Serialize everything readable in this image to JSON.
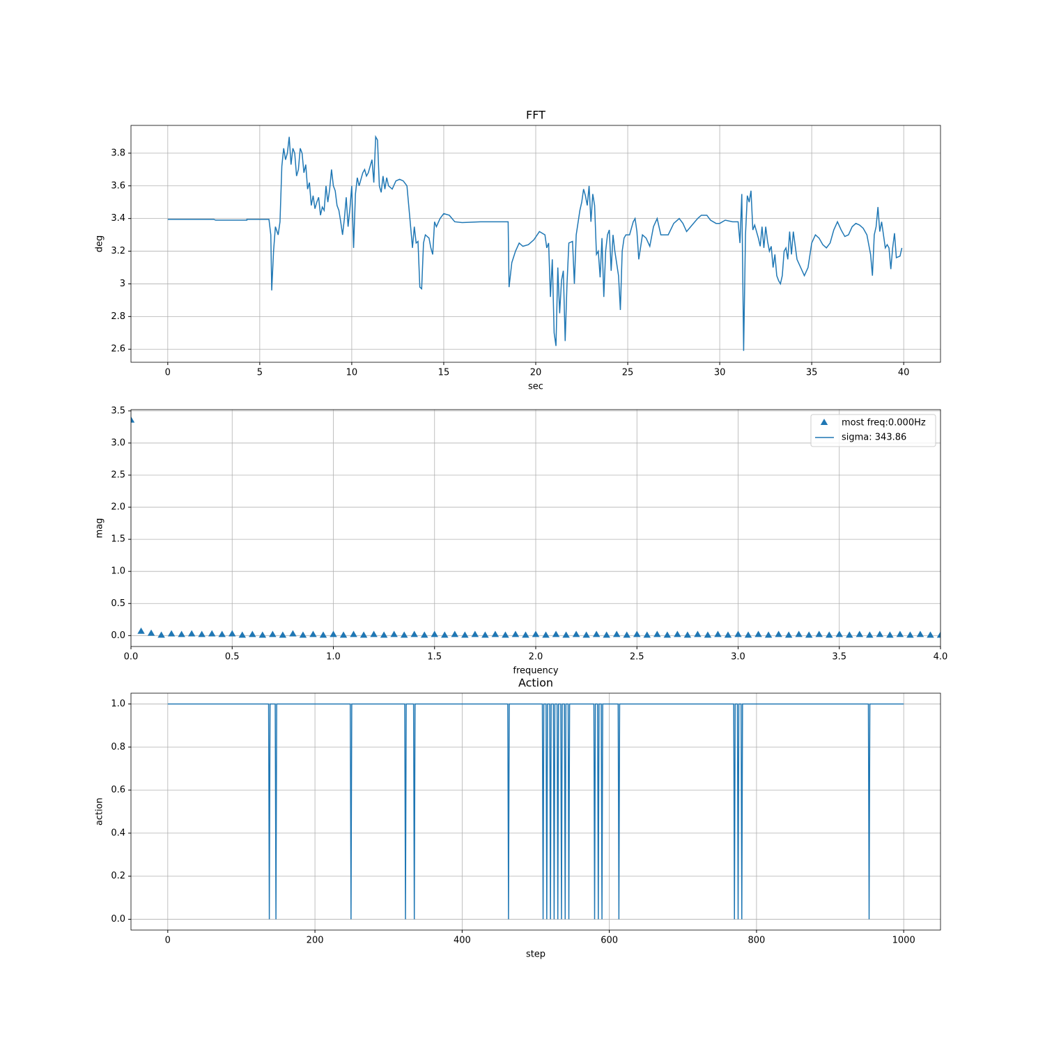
{
  "chart_data": [
    {
      "type": "line",
      "title": "FFT",
      "xlabel": "sec",
      "ylabel": "deg",
      "color": "#1f77b4",
      "grid": true,
      "xlim": [
        -2,
        42
      ],
      "ylim": [
        2.52,
        3.97
      ],
      "xticks": [
        0,
        5,
        10,
        15,
        20,
        25,
        30,
        35,
        40
      ],
      "yticks": [
        2.6,
        2.8,
        3.0,
        3.2,
        3.4,
        3.6,
        3.8
      ],
      "x": [
        0,
        2.5,
        2.6,
        4.3,
        4.3,
        5.5,
        5.6,
        5.65,
        5.75,
        5.85,
        6.0,
        6.1,
        6.2,
        6.3,
        6.4,
        6.5,
        6.6,
        6.7,
        6.8,
        6.9,
        7.0,
        7.1,
        7.2,
        7.3,
        7.4,
        7.5,
        7.6,
        7.7,
        7.8,
        7.9,
        8.0,
        8.1,
        8.2,
        8.3,
        8.4,
        8.5,
        8.6,
        8.7,
        8.8,
        8.9,
        9.0,
        9.1,
        9.2,
        9.3,
        9.4,
        9.5,
        9.6,
        9.7,
        9.8,
        9.9,
        10.0,
        10.1,
        10.2,
        10.3,
        10.4,
        10.6,
        10.7,
        10.8,
        10.9,
        11.0,
        11.1,
        11.2,
        11.3,
        11.4,
        11.5,
        11.6,
        11.7,
        11.8,
        11.9,
        12.0,
        12.2,
        12.4,
        12.6,
        12.8,
        13.0,
        13.2,
        13.3,
        13.4,
        13.5,
        13.6,
        13.7,
        13.8,
        13.9,
        14.0,
        14.2,
        14.3,
        14.4,
        14.5,
        14.6,
        14.8,
        15.0,
        15.3,
        15.6,
        16.0,
        17.0,
        18.5,
        18.55,
        18.7,
        18.9,
        19.1,
        19.3,
        19.6,
        19.9,
        20.2,
        20.5,
        20.6,
        20.7,
        20.8,
        20.9,
        21.0,
        21.1,
        21.2,
        21.3,
        21.4,
        21.5,
        21.6,
        21.7,
        21.8,
        22.0,
        22.1,
        22.2,
        22.4,
        22.5,
        22.6,
        22.7,
        22.8,
        22.9,
        23.0,
        23.1,
        23.2,
        23.3,
        23.4,
        23.5,
        23.6,
        23.7,
        23.8,
        23.9,
        24.0,
        24.1,
        24.2,
        24.3,
        24.5,
        24.6,
        24.7,
        24.8,
        24.9,
        25.1,
        25.3,
        25.4,
        25.5,
        25.6,
        25.8,
        26.0,
        26.2,
        26.4,
        26.6,
        26.8,
        27.0,
        27.2,
        27.5,
        27.8,
        28.0,
        28.2,
        28.5,
        28.8,
        29.0,
        29.3,
        29.5,
        29.8,
        30.0,
        30.3,
        30.7,
        31.0,
        31.1,
        31.2,
        31.3,
        31.4,
        31.5,
        31.6,
        31.7,
        31.8,
        31.9,
        32.1,
        32.2,
        32.3,
        32.4,
        32.5,
        32.6,
        32.7,
        32.8,
        32.9,
        33.0,
        33.1,
        33.2,
        33.3,
        33.4,
        33.5,
        33.6,
        33.7,
        33.8,
        33.9,
        34.0,
        34.2,
        34.4,
        34.6,
        34.8,
        35.0,
        35.2,
        35.4,
        35.6,
        35.8,
        36.0,
        36.2,
        36.4,
        36.6,
        36.8,
        37.0,
        37.2,
        37.4,
        37.6,
        37.8,
        38.0,
        38.2,
        38.3,
        38.4,
        38.5,
        38.6,
        38.7,
        38.8,
        38.9,
        39.0,
        39.1,
        39.2,
        39.3,
        39.4,
        39.5,
        39.6,
        39.8,
        39.9
      ],
      "values": [
        3.395,
        3.395,
        3.39,
        3.39,
        3.395,
        3.395,
        3.3,
        2.96,
        3.2,
        3.35,
        3.3,
        3.38,
        3.72,
        3.83,
        3.76,
        3.8,
        3.9,
        3.73,
        3.83,
        3.8,
        3.66,
        3.7,
        3.83,
        3.8,
        3.68,
        3.73,
        3.58,
        3.62,
        3.48,
        3.54,
        3.46,
        3.5,
        3.53,
        3.42,
        3.47,
        3.45,
        3.6,
        3.5,
        3.58,
        3.7,
        3.6,
        3.57,
        3.48,
        3.45,
        3.38,
        3.3,
        3.4,
        3.53,
        3.35,
        3.46,
        3.6,
        3.22,
        3.55,
        3.65,
        3.6,
        3.68,
        3.7,
        3.66,
        3.68,
        3.72,
        3.76,
        3.62,
        3.9,
        3.88,
        3.6,
        3.56,
        3.66,
        3.58,
        3.65,
        3.6,
        3.58,
        3.63,
        3.64,
        3.63,
        3.6,
        3.35,
        3.22,
        3.35,
        3.25,
        3.26,
        2.98,
        2.97,
        3.25,
        3.3,
        3.28,
        3.22,
        3.18,
        3.38,
        3.35,
        3.4,
        3.43,
        3.42,
        3.38,
        3.375,
        3.38,
        3.38,
        2.98,
        3.13,
        3.2,
        3.25,
        3.23,
        3.24,
        3.27,
        3.32,
        3.3,
        3.22,
        3.25,
        2.92,
        3.15,
        2.7,
        2.62,
        3.1,
        2.82,
        3.02,
        3.08,
        2.65,
        3.0,
        3.25,
        3.26,
        3.0,
        3.3,
        3.45,
        3.5,
        3.58,
        3.54,
        3.48,
        3.6,
        3.38,
        3.55,
        3.48,
        3.18,
        3.2,
        3.04,
        3.28,
        2.92,
        3.2,
        3.3,
        3.33,
        3.08,
        3.3,
        3.2,
        3.05,
        2.84,
        3.2,
        3.28,
        3.3,
        3.3,
        3.38,
        3.4,
        3.32,
        3.15,
        3.3,
        3.28,
        3.23,
        3.35,
        3.4,
        3.3,
        3.3,
        3.3,
        3.37,
        3.4,
        3.37,
        3.32,
        3.36,
        3.4,
        3.42,
        3.42,
        3.39,
        3.37,
        3.37,
        3.39,
        3.38,
        3.38,
        3.25,
        3.55,
        2.59,
        3.3,
        3.54,
        3.5,
        3.57,
        3.33,
        3.36,
        3.28,
        3.23,
        3.35,
        3.22,
        3.35,
        3.26,
        3.2,
        3.23,
        3.1,
        3.18,
        3.05,
        3.02,
        3.0,
        3.05,
        3.2,
        3.22,
        3.15,
        3.32,
        3.18,
        3.32,
        3.15,
        3.1,
        3.05,
        3.1,
        3.25,
        3.3,
        3.28,
        3.24,
        3.22,
        3.25,
        3.33,
        3.38,
        3.33,
        3.29,
        3.3,
        3.35,
        3.37,
        3.36,
        3.34,
        3.3,
        3.18,
        3.05,
        3.3,
        3.35,
        3.47,
        3.32,
        3.38,
        3.3,
        3.22,
        3.24,
        3.22,
        3.09,
        3.22,
        3.31,
        3.16,
        3.17,
        3.22
      ]
    },
    {
      "type": "scatter",
      "xlabel": "frequency",
      "ylabel": "mag",
      "grid": true,
      "legend": "upper right",
      "xlim": [
        0,
        4
      ],
      "ylim": [
        -0.17,
        3.52
      ],
      "xticks": [
        {
          "value": 0,
          "label": "0.0"
        },
        0.5,
        {
          "value": 1,
          "label": "1.0"
        },
        1.5,
        {
          "value": 2,
          "label": "2.0"
        },
        2.5,
        {
          "value": 3,
          "label": "3.0"
        },
        3.5,
        {
          "value": 4,
          "label": "4.0"
        }
      ],
      "yticks": [
        {
          "value": 0,
          "label": "0.0"
        },
        0.5,
        {
          "value": 1,
          "label": "1.0"
        },
        1.5,
        {
          "value": 2,
          "label": "2.0"
        },
        2.5,
        {
          "value": 3,
          "label": "3.0"
        },
        3.5
      ],
      "x": [
        0,
        0.05,
        0.1,
        0.15,
        0.2,
        0.25,
        0.3,
        0.35,
        0.4,
        0.45,
        0.5,
        0.55,
        0.6,
        0.65,
        0.7,
        0.75,
        0.8,
        0.85,
        0.9,
        0.95,
        1.0,
        1.05,
        1.1,
        1.15,
        1.2,
        1.25,
        1.3,
        1.35,
        1.4,
        1.45,
        1.5,
        1.55,
        1.6,
        1.65,
        1.7,
        1.75,
        1.8,
        1.85,
        1.9,
        1.95,
        2.0,
        2.05,
        2.1,
        2.15,
        2.2,
        2.25,
        2.3,
        2.35,
        2.4,
        2.45,
        2.5,
        2.55,
        2.6,
        2.65,
        2.7,
        2.75,
        2.8,
        2.85,
        2.9,
        2.95,
        3.0,
        3.05,
        3.1,
        3.15,
        3.2,
        3.25,
        3.3,
        3.35,
        3.4,
        3.45,
        3.5,
        3.55,
        3.6,
        3.65,
        3.7,
        3.75,
        3.8,
        3.85,
        3.9,
        3.95,
        4.0
      ],
      "series": [
        {
          "name": "most freq:0.000Hz",
          "color": "#1f77b4",
          "marker": "triangle",
          "values": [
            3.35,
            0.06,
            0.03,
            0.0,
            0.02,
            0.01,
            0.02,
            0.01,
            0.02,
            0.01,
            0.02,
            0.0,
            0.01,
            0.0,
            0.01,
            0.0,
            0.02,
            0.0,
            0.01,
            0.0,
            0.01,
            0.0,
            0.01,
            0.0,
            0.01,
            0.0,
            0.01,
            0.0,
            0.01,
            0.0,
            0.01,
            0.0,
            0.01,
            0.0,
            0.01,
            0.0,
            0.01,
            0.0,
            0.01,
            0.0,
            0.01,
            0.0,
            0.01,
            0.0,
            0.01,
            0.0,
            0.01,
            0.0,
            0.01,
            0.0,
            0.01,
            0.0,
            0.01,
            0.0,
            0.01,
            0.0,
            0.01,
            0.0,
            0.01,
            0.0,
            0.01,
            0.0,
            0.01,
            0.0,
            0.01,
            0.0,
            0.01,
            0.0,
            0.01,
            0.0,
            0.01,
            0.0,
            0.01,
            0.0,
            0.01,
            0.0,
            0.01,
            0.0,
            0.01,
            0.0,
            0.0
          ]
        },
        {
          "name": "sigma: 343.86",
          "color": "#1f77b4",
          "y": 343.86
        }
      ]
    },
    {
      "type": "line",
      "title": "Action",
      "xlabel": "step",
      "ylabel": "action",
      "color": "#1f77b4",
      "grid": true,
      "xlim": [
        -50,
        1050
      ],
      "ylim": [
        -0.05,
        1.05
      ],
      "xticks": [
        0,
        200,
        400,
        600,
        800,
        1000
      ],
      "yticks": [
        {
          "value": 0,
          "label": "0.0"
        },
        0.2,
        0.4,
        0.6,
        0.8,
        {
          "value": 1,
          "label": "1.0"
        }
      ],
      "x": [
        0,
        137,
        138,
        139,
        146,
        147,
        148,
        248,
        249,
        250,
        322,
        323,
        324,
        334,
        335,
        336,
        462,
        463,
        464,
        509,
        510,
        511,
        514,
        515,
        516,
        519,
        520,
        521,
        524,
        525,
        526,
        529,
        530,
        531,
        534,
        535,
        536,
        539,
        540,
        541,
        544,
        545,
        546,
        579,
        580,
        581,
        584,
        585,
        586,
        589,
        590,
        591,
        612,
        613,
        614,
        769,
        770,
        771,
        774,
        775,
        776,
        779,
        780,
        781,
        952,
        953,
        954,
        1000
      ],
      "values": [
        1,
        1,
        0,
        1,
        1,
        0,
        1,
        1,
        0,
        1,
        1,
        0,
        1,
        1,
        0,
        1,
        1,
        0,
        1,
        1,
        0,
        1,
        1,
        0,
        1,
        1,
        0,
        1,
        1,
        0,
        1,
        1,
        0,
        1,
        1,
        0,
        1,
        1,
        0,
        1,
        1,
        0,
        1,
        1,
        0,
        1,
        1,
        0,
        1,
        1,
        0,
        1,
        1,
        0,
        1,
        1,
        0,
        1,
        1,
        0,
        1,
        1,
        0,
        1,
        1,
        0,
        1,
        1
      ]
    }
  ]
}
